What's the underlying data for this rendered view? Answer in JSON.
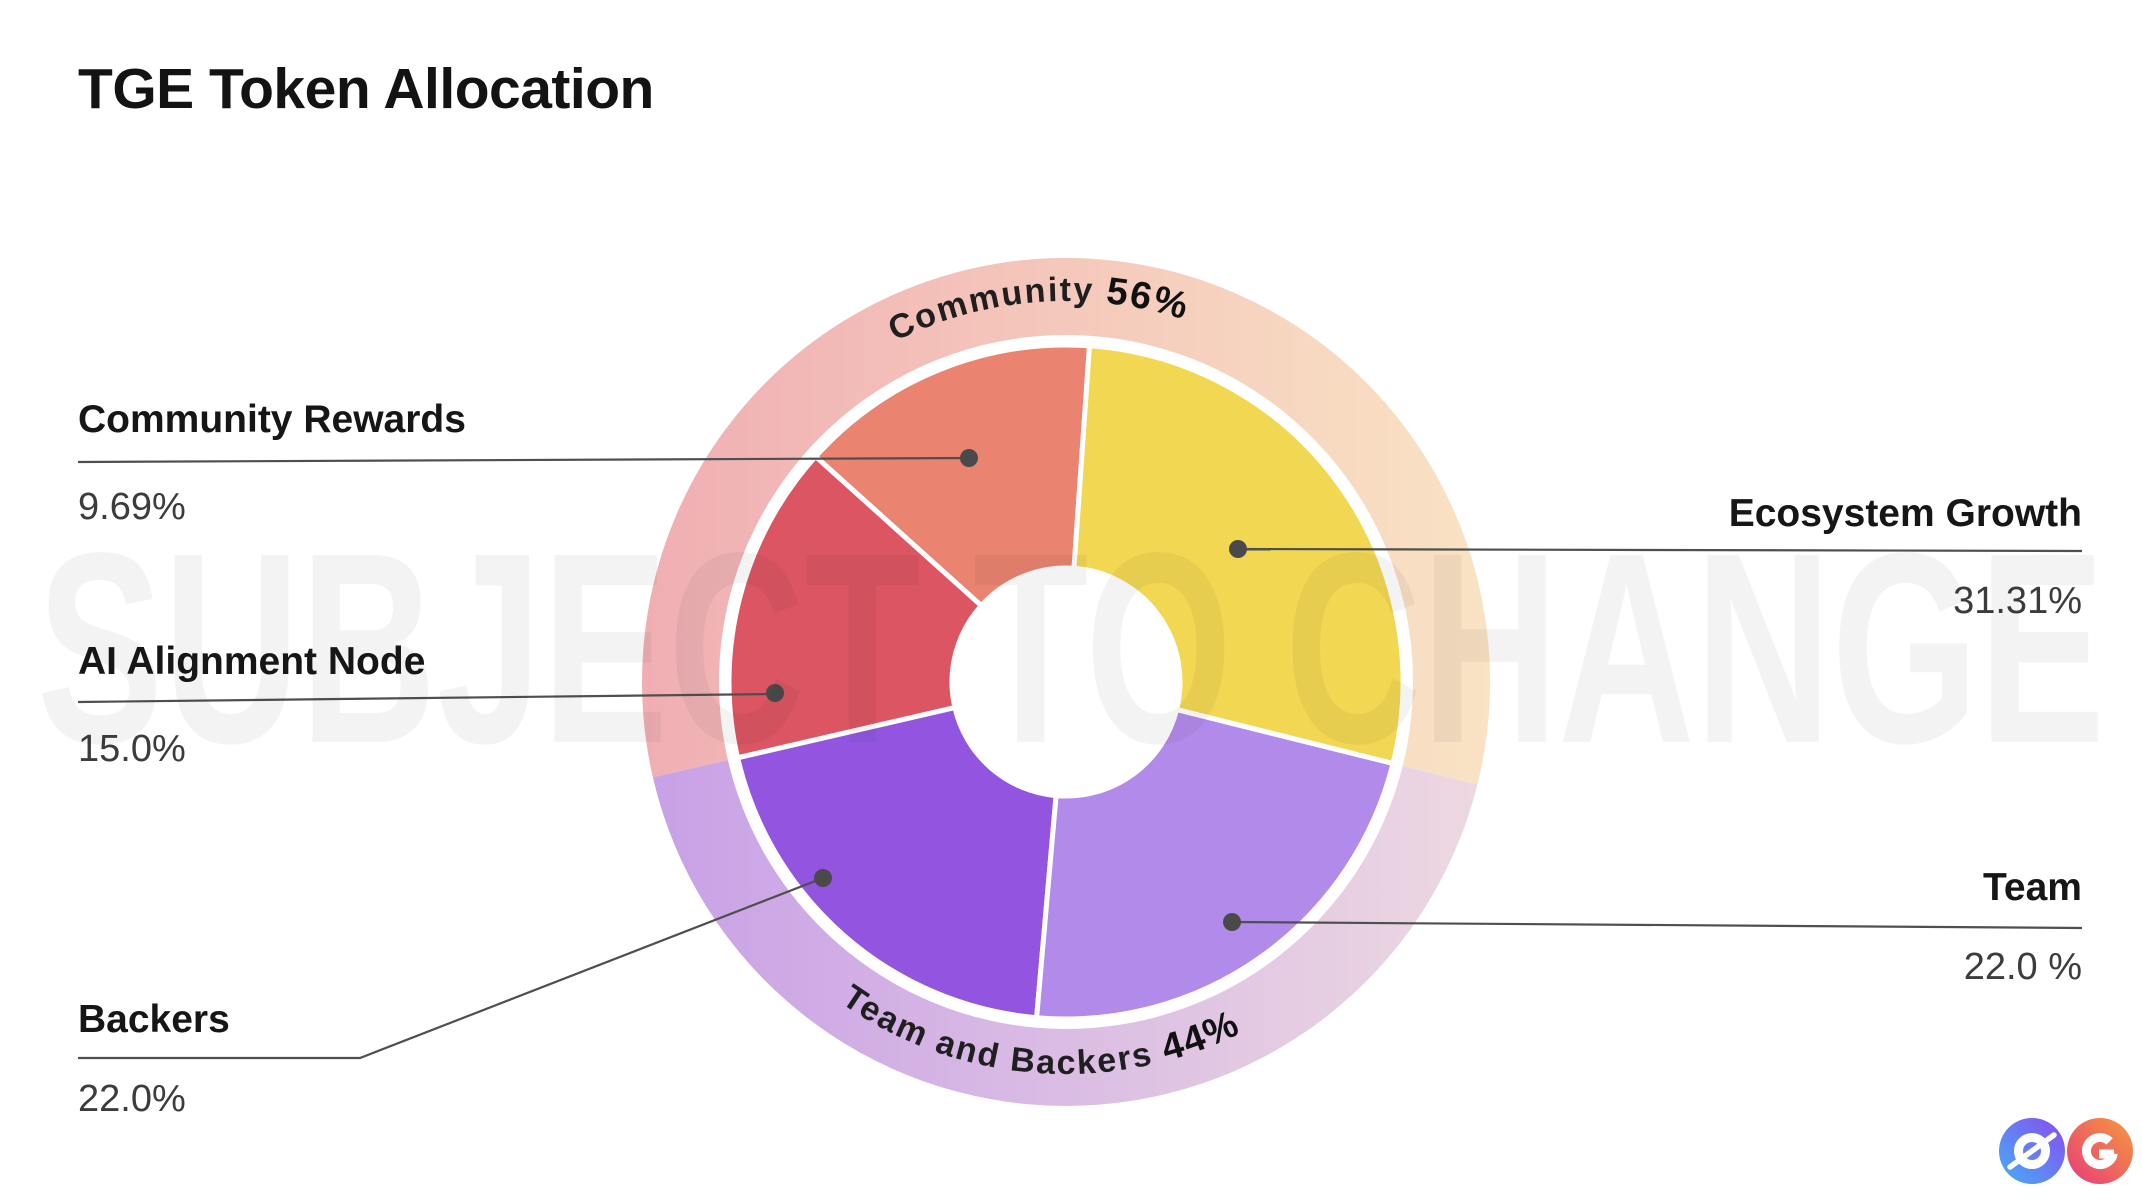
{
  "page": {
    "title": "TGE Token Allocation",
    "watermark": "SUBJECT TO CHANGE",
    "background": "#ffffff"
  },
  "chart_data": {
    "type": "pie",
    "title": "TGE Token Allocation",
    "unit": "%",
    "legend_position": "callouts-left-right",
    "slices": [
      {
        "label": "Community Rewards",
        "value": 9.69,
        "display": "9.69%",
        "color": "#EA8370",
        "group": "Community",
        "start": 222,
        "end": 274
      },
      {
        "label": "AI Alignment Node",
        "value": 15.0,
        "display": "15.0%",
        "color": "#DC5562",
        "group": "Community",
        "start": 167,
        "end": 222
      },
      {
        "label": "Backers",
        "value": 22.0,
        "display": "22.0%",
        "color": "#9355E0",
        "group": "Team and Backers",
        "start": 95,
        "end": 167
      },
      {
        "label": "Ecosystem Growth",
        "value": 31.31,
        "display": "31.31%",
        "color": "#F2D752",
        "group": "Community",
        "start": 274,
        "end": 374
      },
      {
        "label": "Team",
        "value": 22.0,
        "display": "22.0 %",
        "color": "#B28AEA",
        "group": "Team and Backers",
        "start": 14,
        "end": 95
      }
    ],
    "groups": [
      {
        "label": "Community",
        "value": 56,
        "pct_label": "56%",
        "start": 167,
        "end": 374,
        "gradient": [
          "#F0AEB3",
          "#F9E3C4"
        ],
        "position": "top",
        "text_arc": [
          200,
          340
        ],
        "text_radius": 381,
        "sweep": 1
      },
      {
        "label": "Team and Backers",
        "value": 44,
        "pct_label": "44%",
        "start": 14,
        "end": 167,
        "gradient": [
          "#C8A1E6",
          "#EDD8E1"
        ],
        "position": "bottom",
        "text_arc": [
          160,
          20
        ],
        "text_radius": 392,
        "sweep": 0
      }
    ],
    "style": {
      "divider_color": "#ffffff",
      "leader_line_color": "#4f4f4f",
      "dot_color": "#4a4a4a",
      "label_color": "#161616",
      "value_color": "#3c3c3c"
    }
  },
  "logo": {
    "label": "0G logo",
    "zero_gradient": [
      "#45AFF5",
      "#8A4BF0"
    ],
    "g_gradient": [
      "#E83A7B",
      "#F59A3D"
    ]
  }
}
